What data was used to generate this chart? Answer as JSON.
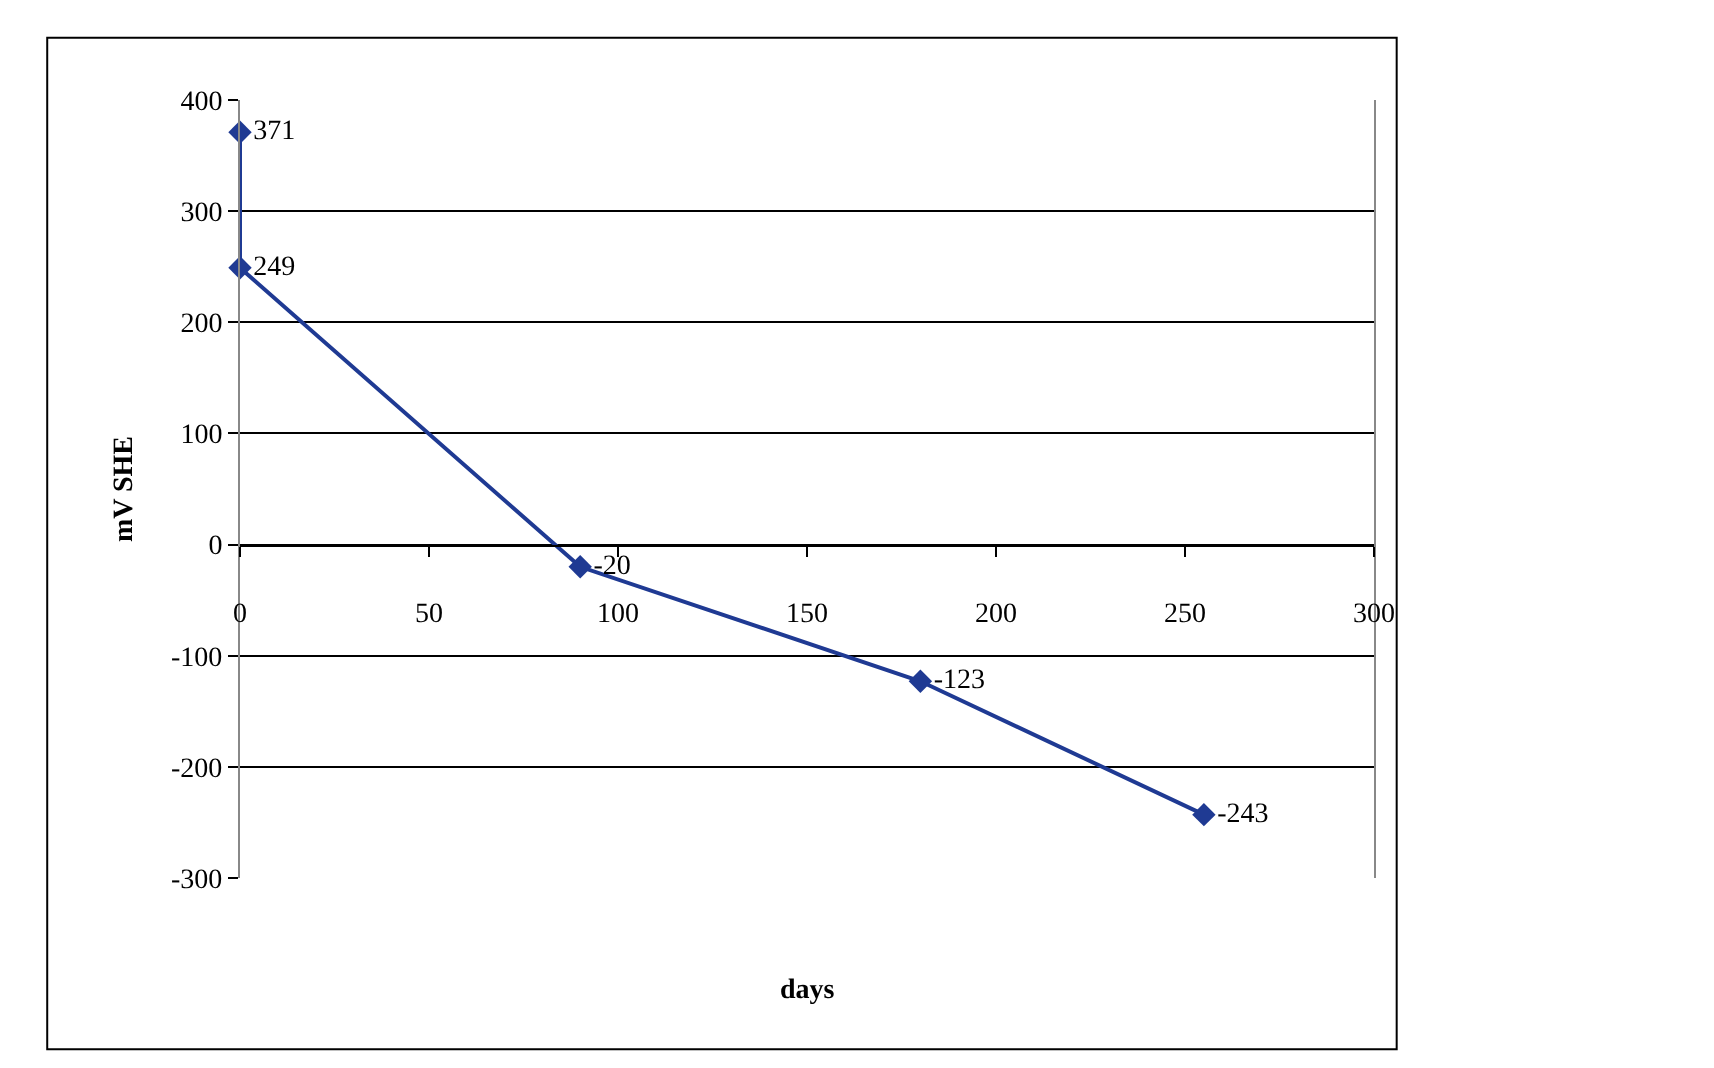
{
  "chart_data": {
    "type": "line",
    "xlabel": "days",
    "ylabel": "mV SHE",
    "x": [
      0,
      0,
      90,
      180,
      255
    ],
    "series": [
      {
        "color": "#1f3a93",
        "values": [
          371,
          249,
          -20,
          -123,
          -243
        ]
      }
    ],
    "xlim": [
      0,
      300
    ],
    "xticks": [
      0,
      50,
      100,
      150,
      200,
      250,
      300
    ],
    "ylim": [
      -300,
      400
    ],
    "yticks": [
      -300,
      -200,
      -100,
      0,
      100,
      200,
      300,
      400
    ],
    "grid": "y",
    "marker": "diamond",
    "line_style": "solid",
    "data_labels": true,
    "legend": false
  }
}
